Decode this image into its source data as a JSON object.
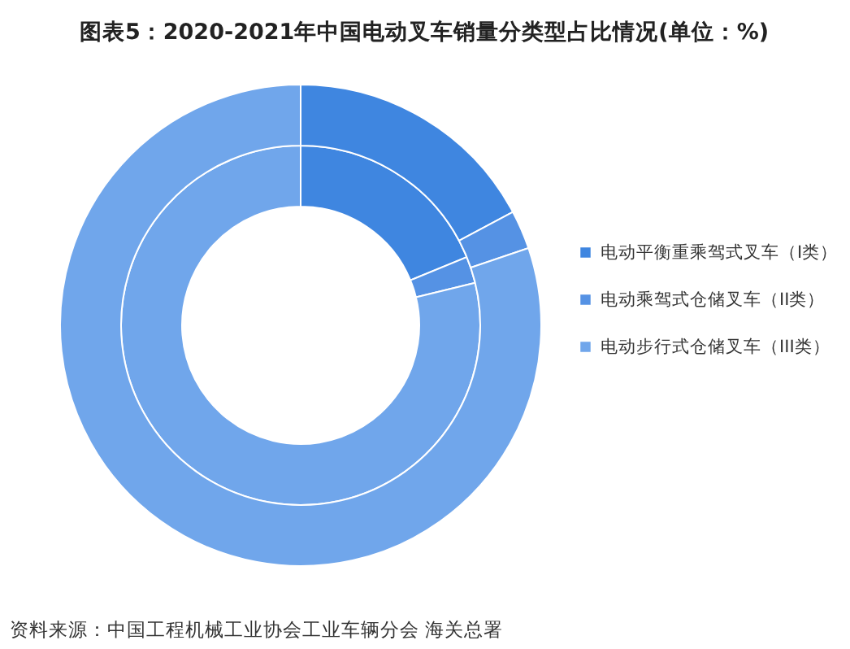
{
  "chart_data": {
    "type": "donut",
    "title": "图表5：2020-2021年中国电动叉车销量分类型占比情况(单位：%)",
    "categories": [
      "电动平衡重乘驾式叉车（I类）",
      "电动乘驾式仓储叉车（II类）",
      "电动步行式仓储叉车（III类）"
    ],
    "colors": [
      "#3f86e0",
      "#5592e4",
      "#70a6eb"
    ],
    "series": [
      {
        "values": [
          18.8,
          2.4,
          78.8
        ]
      },
      {
        "values": [
          17.2,
          2.6,
          80.2
        ]
      }
    ],
    "legend": "right",
    "annotations": [
      "资料来源：中国工程机械工业协会工业车辆分会 海关总署"
    ]
  }
}
